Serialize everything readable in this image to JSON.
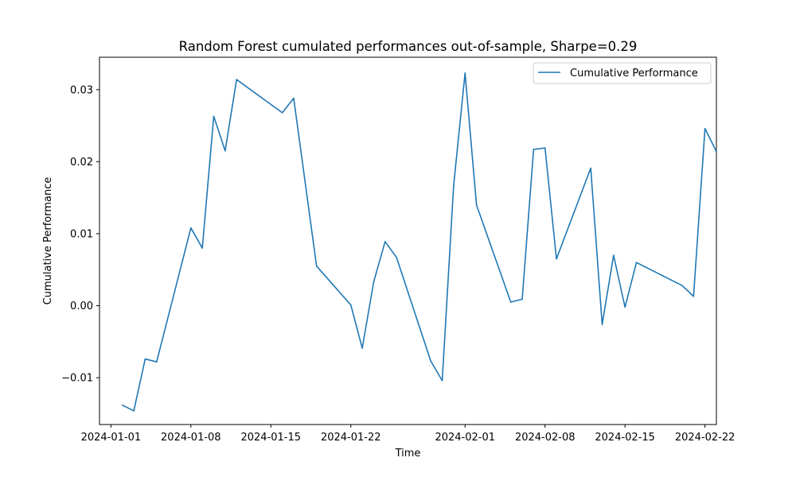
{
  "chart_data": {
    "type": "line",
    "title": "Random Forest cumulated performances out-of-sample, Sharpe=0.29",
    "xlabel": "Time",
    "ylabel": "Cumulative Performance",
    "x_axis_type": "date",
    "xlim": [
      "2023-12-31",
      "2024-02-23"
    ],
    "ylim": [
      -0.0165,
      0.0345
    ],
    "grid": false,
    "legend_position": "top-right",
    "x_ticks": [
      "2024-01-01",
      "2024-01-08",
      "2024-01-15",
      "2024-01-22",
      "2024-02-01",
      "2024-02-08",
      "2024-02-15",
      "2024-02-22"
    ],
    "y_ticks": [
      -0.01,
      0.0,
      0.01,
      0.02,
      0.03
    ],
    "y_tick_labels": [
      "−0.01",
      "0.00",
      "0.01",
      "0.02",
      "0.03"
    ],
    "series": [
      {
        "name": "Cumulative Performance",
        "color": "#1f77b4",
        "x": [
          "2024-01-02",
          "2024-01-03",
          "2024-01-04",
          "2024-01-05",
          "2024-01-08",
          "2024-01-09",
          "2024-01-10",
          "2024-01-11",
          "2024-01-12",
          "2024-01-16",
          "2024-01-17",
          "2024-01-19",
          "2024-01-22",
          "2024-01-23",
          "2024-01-24",
          "2024-01-25",
          "2024-01-26",
          "2024-01-29",
          "2024-01-30",
          "2024-01-31",
          "2024-02-01",
          "2024-02-02",
          "2024-02-05",
          "2024-02-06",
          "2024-02-07",
          "2024-02-08",
          "2024-02-09",
          "2024-02-12",
          "2024-02-13",
          "2024-02-14",
          "2024-02-15",
          "2024-02-16",
          "2024-02-20",
          "2024-02-21",
          "2024-02-22",
          "2024-02-23"
        ],
        "values": [
          -0.0138,
          -0.0146,
          -0.0074,
          -0.0078,
          0.0108,
          0.008,
          0.0263,
          0.0215,
          0.0314,
          0.0268,
          0.0288,
          0.0055,
          0.0001,
          -0.0059,
          0.0033,
          0.0089,
          0.0067,
          -0.0077,
          -0.0104,
          0.0167,
          0.0323,
          0.014,
          0.0005,
          0.0009,
          0.0217,
          0.0219,
          0.0065,
          0.0191,
          -0.0026,
          0.007,
          -0.0002,
          0.006,
          0.0028,
          0.0013,
          0.0246,
          0.0214
        ]
      }
    ]
  }
}
